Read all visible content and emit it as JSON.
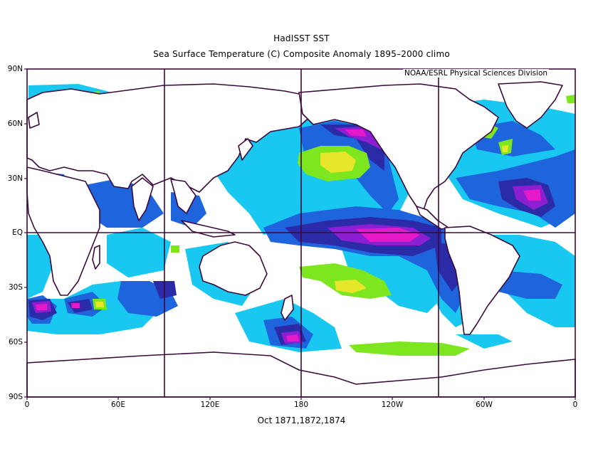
{
  "title": "HadISST SST",
  "subtitle": "Sea Surface Temperature (C) Composite Anomaly 1895–2000 climo",
  "credit": "NOAA/ESRL Physical Sciences Division",
  "caption": "Oct 1871,1872,1874",
  "y_ticks": [
    "90N",
    "60N",
    "30N",
    "EQ",
    "30S",
    "60S",
    "90S"
  ],
  "x_ticks": [
    "0",
    "60E",
    "120E",
    "180",
    "120W",
    "60W",
    "0"
  ],
  "colors": {
    "frame": "#3a0a3a",
    "coast": "#3a0a3a",
    "light_blue": "#19c8f0",
    "mid_blue": "#1e64dc",
    "dark_blue": "#2b2ba8",
    "purple": "#8c1fd2",
    "magenta": "#e619c8",
    "green": "#7ee61e",
    "yellow": "#e6e62a"
  }
}
